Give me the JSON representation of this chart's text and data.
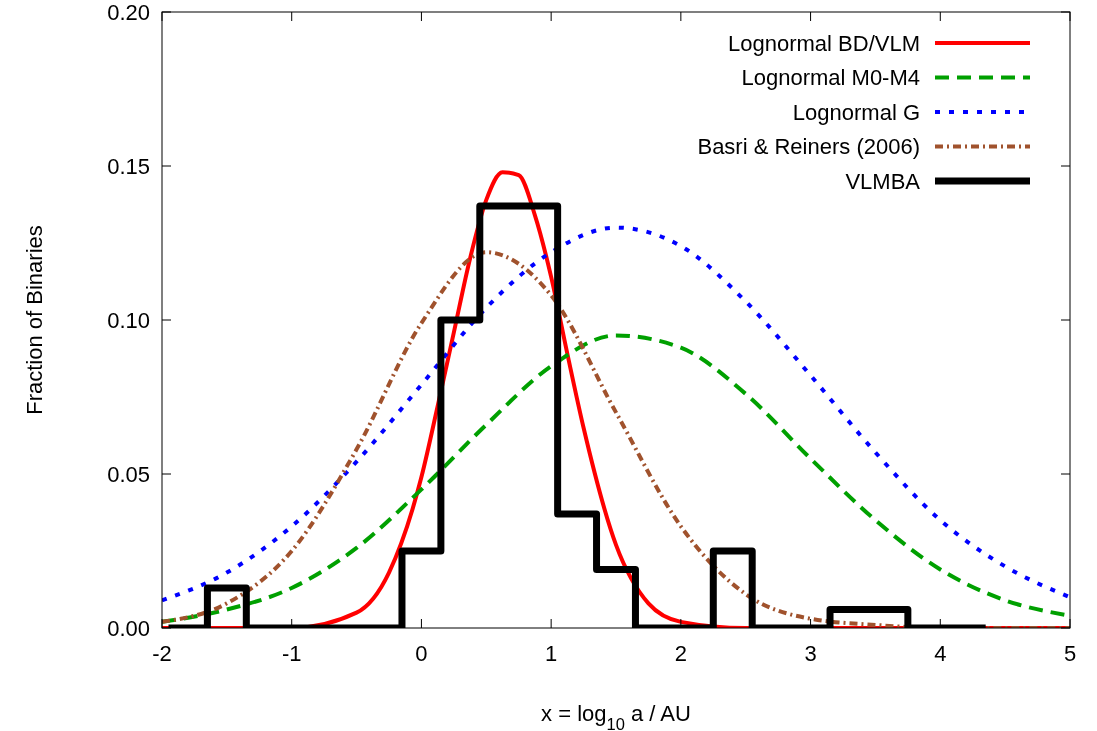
{
  "chart_data": {
    "type": "line",
    "xlabel": "x = log$_{10}$ a / AU",
    "ylabel": "Fraction of Binaries",
    "xlim": [
      -2,
      5
    ],
    "ylim": [
      0,
      0.2
    ],
    "xticks": [
      -2,
      -1,
      0,
      1,
      2,
      3,
      4,
      5
    ],
    "yticks": [
      {
        "value": 0,
        "label": "0.00"
      },
      {
        "value": 0.05,
        "label": "0.05"
      },
      {
        "value": 0.1,
        "label": "0.10"
      },
      {
        "value": 0.15,
        "label": "0.15"
      },
      {
        "value": 0.2,
        "label": "0.20"
      }
    ],
    "grid": false,
    "legend": "top right",
    "marker": "none",
    "series": [
      {
        "name": "Lognormal BD/VLM",
        "color": "#ff0000",
        "line_style": "solid",
        "x": [
          -2,
          -1,
          -0.5,
          -0.25,
          0,
          0.125,
          0.25,
          0.375,
          0.5,
          0.625,
          0.75,
          0.875,
          1,
          1.125,
          1.25,
          1.5,
          1.75,
          2,
          2.5,
          3,
          5
        ],
        "values": [
          0,
          0,
          0.005,
          0.018,
          0.049,
          0.072,
          0.096,
          0.12,
          0.139,
          0.148,
          0.147,
          0.134,
          0.114,
          0.089,
          0.065,
          0.027,
          0.008,
          0.002,
          0,
          0,
          0
        ]
      },
      {
        "name": "Lognormal M0-M4",
        "color": "#00a000",
        "line_style": "dashed",
        "x": [
          -2,
          -1.5,
          -1,
          -0.5,
          0,
          0.5,
          1,
          1.5,
          2,
          2.5,
          3,
          3.5,
          4,
          4.5,
          5
        ],
        "values": [
          0.002,
          0.006,
          0.013,
          0.026,
          0.045,
          0.066,
          0.085,
          0.095,
          0.091,
          0.076,
          0.055,
          0.035,
          0.019,
          0.009,
          0.004
        ]
      },
      {
        "name": "Lognormal G",
        "color": "#0000ff",
        "line_style": "dotted",
        "x": [
          -2,
          -1.5,
          -1,
          -0.5,
          0,
          0.5,
          1,
          1.5,
          2,
          2.5,
          3,
          3.5,
          4,
          4.5,
          5
        ],
        "values": [
          0.009,
          0.018,
          0.033,
          0.054,
          0.079,
          0.104,
          0.122,
          0.13,
          0.124,
          0.106,
          0.082,
          0.057,
          0.035,
          0.02,
          0.01
        ]
      },
      {
        "name": "Basri & Reiners (2006)",
        "color": "#a0522d",
        "line_style": "dashdot",
        "x": [
          -2,
          -1.5,
          -1,
          -0.5,
          0,
          0.5,
          1,
          1.5,
          2,
          2.5,
          3,
          3.5,
          4,
          4.5,
          5
        ],
        "values": [
          0.002,
          0.008,
          0.025,
          0.058,
          0.099,
          0.122,
          0.108,
          0.07,
          0.033,
          0.011,
          0.003,
          0.001,
          0,
          0,
          0
        ]
      },
      {
        "name": "VLMBA",
        "type": "step",
        "color": "#000000",
        "line_style": "solid",
        "x": [
          -1.95,
          -1.65,
          -1.35,
          -1.05,
          -0.75,
          -0.45,
          -0.15,
          0.15,
          0.45,
          0.75,
          1.05,
          1.35,
          1.65,
          1.95,
          2.25,
          2.55,
          2.85,
          3.15,
          3.45,
          3.75,
          4.05,
          4.35
        ],
        "values": [
          0,
          0.013,
          0,
          0,
          0,
          0,
          0.025,
          0.1,
          0.137,
          0.137,
          0.037,
          0.019,
          0,
          0,
          0.025,
          0,
          0,
          0.006,
          0.006,
          0,
          0,
          0
        ]
      }
    ]
  }
}
